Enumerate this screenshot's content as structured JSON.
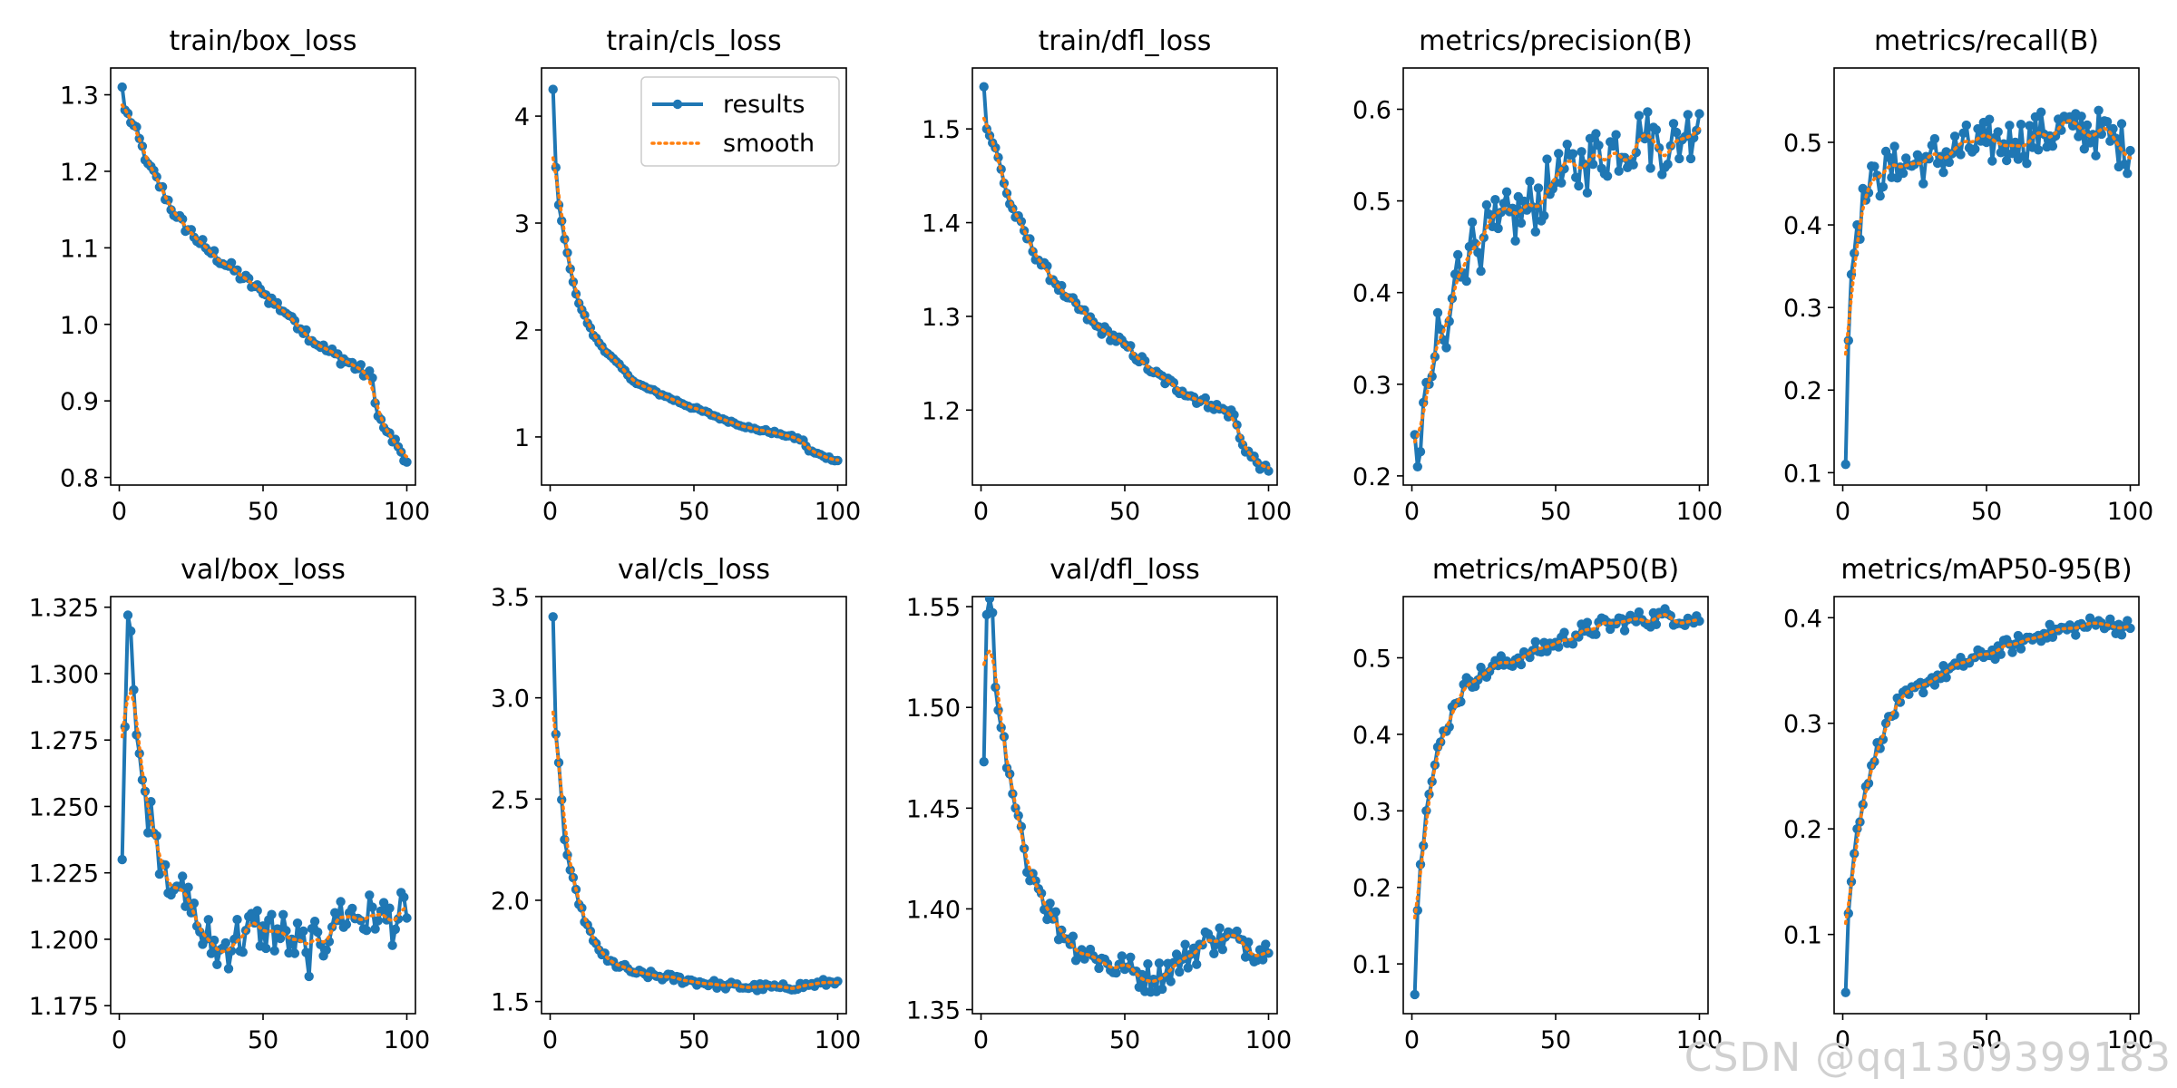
{
  "watermark": "CSDN @qq1309399183",
  "legend": {
    "results_label": "results",
    "smooth_label": "smooth"
  },
  "colors": {
    "results": "#1f77b4",
    "smooth": "#ff7f0e",
    "axis": "#000000"
  },
  "chart_data": [
    {
      "type": "line",
      "title": "train/box_loss",
      "xlim": [
        -3,
        103
      ],
      "ylim": [
        0.79,
        1.335
      ],
      "xticks": [
        0,
        50,
        100
      ],
      "yticks": [
        0.8,
        0.9,
        1.0,
        1.1,
        1.2,
        1.3
      ],
      "ytick_format": 1,
      "anchors": [
        [
          1,
          1.31
        ],
        [
          2,
          1.28
        ],
        [
          5,
          1.26
        ],
        [
          10,
          1.21
        ],
        [
          20,
          1.14
        ],
        [
          30,
          1.1
        ],
        [
          40,
          1.07
        ],
        [
          50,
          1.04
        ],
        [
          60,
          1.01
        ],
        [
          70,
          0.97
        ],
        [
          80,
          0.95
        ],
        [
          88,
          0.93
        ],
        [
          90,
          0.88
        ],
        [
          93,
          0.86
        ],
        [
          97,
          0.84
        ],
        [
          100,
          0.82
        ]
      ],
      "noise": 0.008,
      "legend": false
    },
    {
      "type": "line",
      "title": "train/cls_loss",
      "xlim": [
        -3,
        103
      ],
      "ylim": [
        0.55,
        4.45
      ],
      "xticks": [
        0,
        50,
        100
      ],
      "yticks": [
        1,
        2,
        3,
        4
      ],
      "ytick_format": 0,
      "anchors": [
        [
          1,
          4.25
        ],
        [
          2,
          3.52
        ],
        [
          3,
          3.17
        ],
        [
          5,
          2.85
        ],
        [
          8,
          2.45
        ],
        [
          10,
          2.25
        ],
        [
          15,
          1.95
        ],
        [
          20,
          1.78
        ],
        [
          30,
          1.5
        ],
        [
          40,
          1.38
        ],
        [
          50,
          1.27
        ],
        [
          60,
          1.17
        ],
        [
          70,
          1.08
        ],
        [
          80,
          1.03
        ],
        [
          88,
          0.97
        ],
        [
          90,
          0.87
        ],
        [
          95,
          0.82
        ],
        [
          100,
          0.78
        ]
      ],
      "noise": 0.015,
      "legend": true
    },
    {
      "type": "line",
      "title": "train/dfl_loss",
      "xlim": [
        -3,
        103
      ],
      "ylim": [
        1.12,
        1.565
      ],
      "xticks": [
        0,
        50,
        100
      ],
      "yticks": [
        1.2,
        1.3,
        1.4,
        1.5
      ],
      "ytick_format": 1,
      "anchors": [
        [
          1,
          1.545
        ],
        [
          2,
          1.5
        ],
        [
          5,
          1.48
        ],
        [
          10,
          1.42
        ],
        [
          20,
          1.36
        ],
        [
          30,
          1.32
        ],
        [
          40,
          1.29
        ],
        [
          50,
          1.27
        ],
        [
          60,
          1.24
        ],
        [
          70,
          1.22
        ],
        [
          80,
          1.205
        ],
        [
          88,
          1.195
        ],
        [
          90,
          1.17
        ],
        [
          94,
          1.15
        ],
        [
          98,
          1.14
        ],
        [
          100,
          1.135
        ]
      ],
      "noise": 0.006,
      "legend": false
    },
    {
      "type": "line",
      "title": "metrics/precision(B)",
      "xlim": [
        -3,
        103
      ],
      "ylim": [
        0.19,
        0.645
      ],
      "xticks": [
        0,
        50,
        100
      ],
      "yticks": [
        0.2,
        0.3,
        0.4,
        0.5,
        0.6
      ],
      "ytick_format": 1,
      "anchors": [
        [
          1,
          0.245
        ],
        [
          2,
          0.21
        ],
        [
          4,
          0.28
        ],
        [
          6,
          0.3
        ],
        [
          8,
          0.33
        ],
        [
          10,
          0.36
        ],
        [
          12,
          0.34
        ],
        [
          15,
          0.42
        ],
        [
          20,
          0.45
        ],
        [
          25,
          0.46
        ],
        [
          30,
          0.47
        ],
        [
          40,
          0.49
        ],
        [
          50,
          0.52
        ],
        [
          60,
          0.54
        ],
        [
          70,
          0.56
        ],
        [
          80,
          0.57
        ],
        [
          90,
          0.56
        ],
        [
          95,
          0.57
        ],
        [
          100,
          0.595
        ]
      ],
      "noise": 0.035,
      "legend": false
    },
    {
      "type": "line",
      "title": "metrics/recall(B)",
      "xlim": [
        -3,
        103
      ],
      "ylim": [
        0.085,
        0.59
      ],
      "xticks": [
        0,
        50,
        100
      ],
      "yticks": [
        0.1,
        0.2,
        0.3,
        0.4,
        0.5
      ],
      "ytick_format": 1,
      "anchors": [
        [
          1,
          0.11
        ],
        [
          2,
          0.26
        ],
        [
          3,
          0.34
        ],
        [
          5,
          0.4
        ],
        [
          8,
          0.43
        ],
        [
          12,
          0.46
        ],
        [
          20,
          0.47
        ],
        [
          30,
          0.48
        ],
        [
          40,
          0.49
        ],
        [
          50,
          0.5
        ],
        [
          60,
          0.5
        ],
        [
          70,
          0.51
        ],
        [
          80,
          0.52
        ],
        [
          90,
          0.51
        ],
        [
          100,
          0.49
        ]
      ],
      "noise": 0.03,
      "legend": false
    },
    {
      "type": "line",
      "title": "val/box_loss",
      "xlim": [
        -3,
        103
      ],
      "ylim": [
        1.172,
        1.329
      ],
      "xticks": [
        0,
        50,
        100
      ],
      "yticks": [
        1.175,
        1.2,
        1.225,
        1.25,
        1.275,
        1.3,
        1.325
      ],
      "ytick_format": 3,
      "anchors": [
        [
          1,
          1.23
        ],
        [
          2,
          1.28
        ],
        [
          3,
          1.322
        ],
        [
          4,
          1.316
        ],
        [
          6,
          1.277
        ],
        [
          8,
          1.26
        ],
        [
          12,
          1.24
        ],
        [
          16,
          1.228
        ],
        [
          20,
          1.22
        ],
        [
          25,
          1.21
        ],
        [
          30,
          1.2
        ],
        [
          35,
          1.196
        ],
        [
          40,
          1.2
        ],
        [
          50,
          1.205
        ],
        [
          60,
          1.2
        ],
        [
          65,
          1.195
        ],
        [
          70,
          1.198
        ],
        [
          75,
          1.21
        ],
        [
          80,
          1.21
        ],
        [
          90,
          1.207
        ],
        [
          100,
          1.208
        ]
      ],
      "noise": 0.01,
      "legend": false
    },
    {
      "type": "line",
      "title": "val/cls_loss",
      "xlim": [
        -3,
        103
      ],
      "ylim": [
        1.44,
        3.5
      ],
      "xticks": [
        0,
        50,
        100
      ],
      "yticks": [
        1.5,
        2.0,
        2.5,
        3.0,
        3.5
      ],
      "ytick_format": 1,
      "anchors": [
        [
          1,
          3.4
        ],
        [
          2,
          2.82
        ],
        [
          3,
          2.68
        ],
        [
          5,
          2.3
        ],
        [
          7,
          2.15
        ],
        [
          10,
          1.98
        ],
        [
          15,
          1.8
        ],
        [
          20,
          1.7
        ],
        [
          30,
          1.64
        ],
        [
          40,
          1.62
        ],
        [
          50,
          1.6
        ],
        [
          60,
          1.58
        ],
        [
          70,
          1.57
        ],
        [
          80,
          1.57
        ],
        [
          90,
          1.58
        ],
        [
          100,
          1.6
        ]
      ],
      "noise": 0.02,
      "legend": false
    },
    {
      "type": "line",
      "title": "val/dfl_loss",
      "xlim": [
        -3,
        103
      ],
      "ylim": [
        1.348,
        1.555
      ],
      "xticks": [
        0,
        50,
        100
      ],
      "yticks": [
        1.35,
        1.4,
        1.45,
        1.5,
        1.55
      ],
      "ytick_format": 2,
      "anchors": [
        [
          1,
          1.473
        ],
        [
          2,
          1.546
        ],
        [
          4,
          1.547
        ],
        [
          5,
          1.51
        ],
        [
          7,
          1.49
        ],
        [
          9,
          1.47
        ],
        [
          12,
          1.45
        ],
        [
          15,
          1.43
        ],
        [
          20,
          1.41
        ],
        [
          25,
          1.395
        ],
        [
          30,
          1.385
        ],
        [
          40,
          1.375
        ],
        [
          50,
          1.37
        ],
        [
          60,
          1.365
        ],
        [
          70,
          1.375
        ],
        [
          80,
          1.385
        ],
        [
          90,
          1.385
        ],
        [
          100,
          1.378
        ]
      ],
      "noise": 0.008,
      "legend": false
    },
    {
      "type": "line",
      "title": "metrics/mAP50(B)",
      "xlim": [
        -3,
        103
      ],
      "ylim": [
        0.035,
        0.58
      ],
      "xticks": [
        0,
        50,
        100
      ],
      "yticks": [
        0.1,
        0.2,
        0.3,
        0.4,
        0.5
      ],
      "ytick_format": 1,
      "anchors": [
        [
          1,
          0.06
        ],
        [
          2,
          0.17
        ],
        [
          3,
          0.23
        ],
        [
          5,
          0.3
        ],
        [
          8,
          0.36
        ],
        [
          10,
          0.39
        ],
        [
          15,
          0.44
        ],
        [
          20,
          0.47
        ],
        [
          30,
          0.49
        ],
        [
          40,
          0.505
        ],
        [
          50,
          0.52
        ],
        [
          60,
          0.535
        ],
        [
          70,
          0.545
        ],
        [
          80,
          0.55
        ],
        [
          90,
          0.555
        ],
        [
          100,
          0.548
        ]
      ],
      "noise": 0.012,
      "legend": false
    },
    {
      "type": "line",
      "title": "metrics/mAP50-95(B)",
      "xlim": [
        -3,
        103
      ],
      "ylim": [
        0.025,
        0.42
      ],
      "xticks": [
        0,
        50,
        100
      ],
      "yticks": [
        0.1,
        0.2,
        0.3,
        0.4
      ],
      "ytick_format": 1,
      "anchors": [
        [
          1,
          0.045
        ],
        [
          2,
          0.12
        ],
        [
          3,
          0.15
        ],
        [
          5,
          0.2
        ],
        [
          8,
          0.24
        ],
        [
          10,
          0.26
        ],
        [
          15,
          0.3
        ],
        [
          20,
          0.32
        ],
        [
          30,
          0.34
        ],
        [
          40,
          0.355
        ],
        [
          50,
          0.365
        ],
        [
          60,
          0.375
        ],
        [
          70,
          0.385
        ],
        [
          80,
          0.39
        ],
        [
          90,
          0.395
        ],
        [
          100,
          0.39
        ]
      ],
      "noise": 0.008,
      "legend": false
    }
  ]
}
